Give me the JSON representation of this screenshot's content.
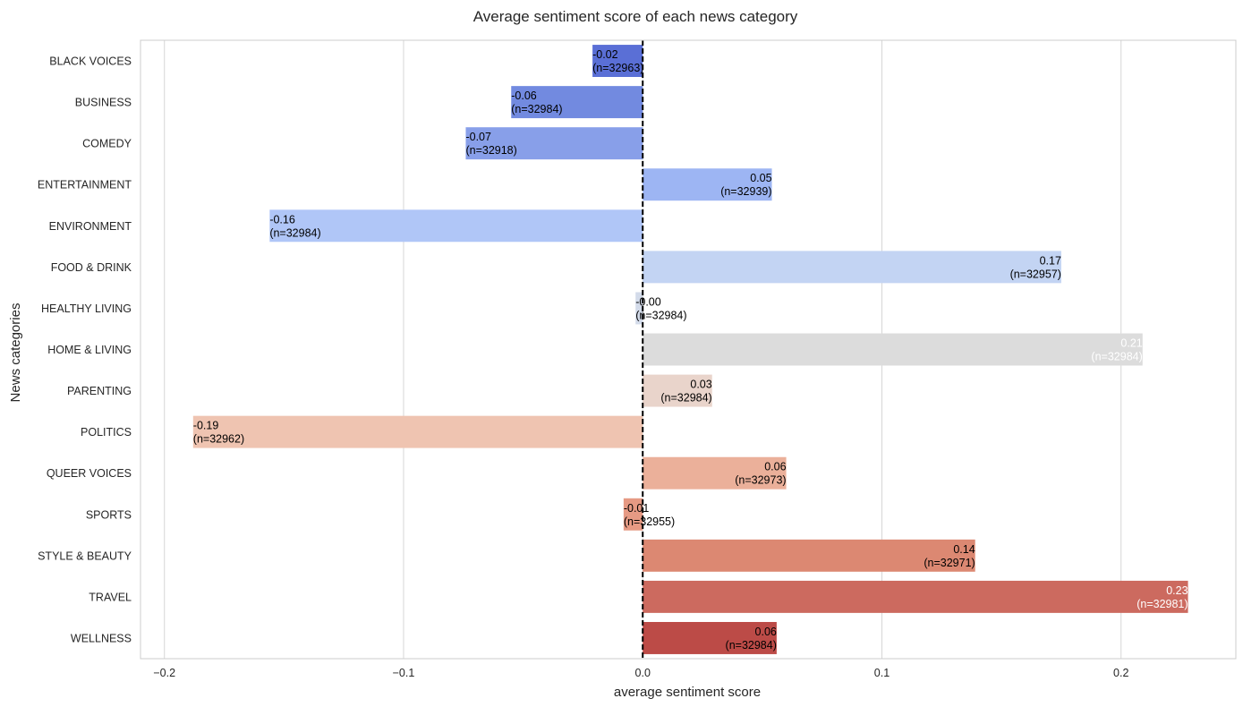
{
  "chart_data": {
    "type": "bar",
    "orientation": "horizontal",
    "title": "Average sentiment score of each news category",
    "xlabel": "average sentiment score",
    "ylabel": "News categories",
    "xlim": [
      -0.21,
      0.248
    ],
    "xticks": [
      -0.2,
      -0.1,
      0.0,
      0.1,
      0.2
    ],
    "xtick_labels": [
      "−0.2",
      "−0.1",
      "0.0",
      "0.1",
      "0.2"
    ],
    "grid": "vertical",
    "reference_line": {
      "x": 0.0,
      "style": "dashed",
      "color": "#000000"
    },
    "categories": [
      "BLACK VOICES",
      "BUSINESS",
      "COMEDY",
      "ENTERTAINMENT",
      "ENVIRONMENT",
      "FOOD & DRINK",
      "HEALTHY LIVING",
      "HOME & LIVING",
      "PARENTING",
      "POLITICS",
      "QUEER VOICES",
      "SPORTS",
      "STYLE & BEAUTY",
      "TRAVEL",
      "WELLNESS"
    ],
    "values": [
      -0.021,
      -0.055,
      -0.074,
      0.054,
      -0.156,
      0.175,
      -0.003,
      0.209,
      0.029,
      -0.188,
      0.06,
      -0.008,
      0.139,
      0.228,
      0.056
    ],
    "value_labels": [
      "-0.02",
      "-0.06",
      "-0.07",
      "0.05",
      "-0.16",
      "0.17",
      "-0.00",
      "0.21",
      "0.03",
      "-0.19",
      "0.06",
      "-0.01",
      "0.14",
      "0.23",
      "0.06"
    ],
    "count_labels": [
      "(n=32963)",
      "(n=32984)",
      "(n=32918)",
      "(n=32939)",
      "(n=32984)",
      "(n=32957)",
      "(n=32984)",
      "(n=32984)",
      "(n=32984)",
      "(n=32962)",
      "(n=32973)",
      "(n=32955)",
      "(n=32971)",
      "(n=32981)",
      "(n=32984)"
    ],
    "colors": [
      "#5a6fd6",
      "#728ae0",
      "#889fe9",
      "#9db5f3",
      "#b0c6f7",
      "#c3d4f3",
      "#d3dbea",
      "#dcdcdc",
      "#e9d4cb",
      "#efc4b1",
      "#ebb09a",
      "#e69a84",
      "#dc8872",
      "#cc6a5f",
      "#bc4b47"
    ],
    "label_colors": [
      "#000000",
      "#000000",
      "#000000",
      "#000000",
      "#000000",
      "#000000",
      "#000000",
      "#ffffff",
      "#000000",
      "#000000",
      "#000000",
      "#000000",
      "#000000",
      "#ffffff",
      "#000000"
    ]
  }
}
